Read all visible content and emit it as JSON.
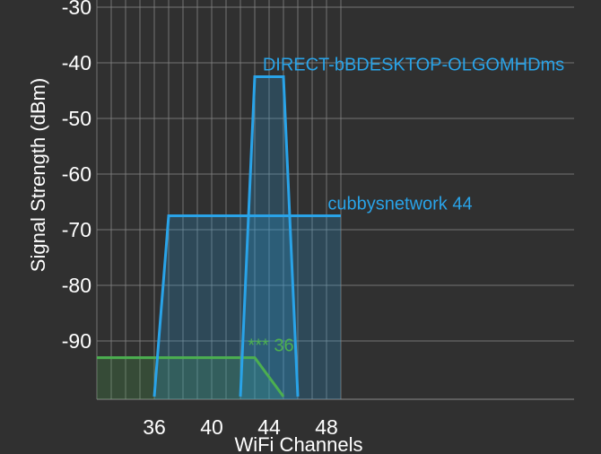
{
  "chart_data": {
    "type": "area",
    "xlabel": "WiFi Channels",
    "ylabel": "Signal Strength (dBm)",
    "xlim": [
      32,
      49
    ],
    "ylim": [
      -100,
      -30
    ],
    "xticks": [
      36,
      40,
      44,
      48
    ],
    "yticks": [
      -30,
      -40,
      -50,
      -60,
      -70,
      -80,
      -90
    ],
    "grid": true,
    "series": [
      {
        "name": "*** 36",
        "color": "#4caf50",
        "x": [
          32,
          35,
          37,
          43,
          45
        ],
        "y": [
          -93,
          -93,
          -93,
          -93,
          -100
        ]
      },
      {
        "name": "cubbysnetwork 44",
        "color": "#29a3e8",
        "x": [
          36,
          37,
          49
        ],
        "y": [
          -100,
          -67.5,
          -67.5
        ]
      },
      {
        "name": "DIRECT-bBDESKTOP-OLGOMHDms",
        "color": "#29a3e8",
        "x": [
          42,
          43,
          45,
          46
        ],
        "y": [
          -100,
          -42.5,
          -42.5,
          -100
        ]
      }
    ]
  }
}
